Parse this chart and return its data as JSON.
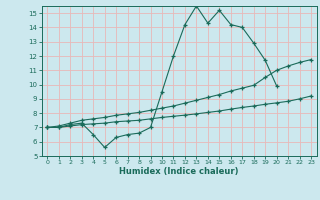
{
  "title": "",
  "xlabel": "Humidex (Indice chaleur)",
  "bg_color": "#cce8ee",
  "line_color": "#1a6b5a",
  "grid_color": "#e8b8b8",
  "ylim": [
    5,
    15.5
  ],
  "xlim": [
    -0.5,
    23.5
  ],
  "yticks": [
    5,
    6,
    7,
    8,
    9,
    10,
    11,
    12,
    13,
    14,
    15
  ],
  "xticks": [
    0,
    1,
    2,
    3,
    4,
    5,
    6,
    7,
    8,
    9,
    10,
    11,
    12,
    13,
    14,
    15,
    16,
    17,
    18,
    19,
    20,
    21,
    22,
    23
  ],
  "series1_x": [
    0,
    1,
    2,
    3,
    4,
    5,
    6,
    7,
    8,
    9,
    10,
    11,
    12,
    13,
    14,
    15,
    16,
    17,
    18,
    19,
    20
  ],
  "series1_y": [
    7.0,
    7.0,
    7.2,
    7.3,
    6.5,
    5.6,
    6.3,
    6.5,
    6.6,
    7.0,
    9.5,
    12.0,
    14.2,
    15.5,
    14.3,
    15.2,
    14.2,
    14.0,
    12.9,
    11.7,
    9.9
  ],
  "series2_x": [
    0,
    1,
    2,
    3,
    4,
    5,
    6,
    7,
    8,
    9,
    10,
    11,
    12,
    13,
    14,
    15,
    16,
    17,
    18,
    19,
    20,
    21,
    22,
    23
  ],
  "series2_y": [
    7.0,
    7.1,
    7.3,
    7.5,
    7.6,
    7.7,
    7.85,
    7.95,
    8.05,
    8.2,
    8.35,
    8.5,
    8.7,
    8.9,
    9.1,
    9.3,
    9.55,
    9.75,
    9.95,
    10.5,
    11.0,
    11.3,
    11.55,
    11.75
  ],
  "series3_x": [
    0,
    1,
    2,
    3,
    4,
    5,
    6,
    7,
    8,
    9,
    10,
    11,
    12,
    13,
    14,
    15,
    16,
    17,
    18,
    19,
    20,
    21,
    22,
    23
  ],
  "series3_y": [
    7.0,
    7.0,
    7.1,
    7.2,
    7.25,
    7.3,
    7.4,
    7.45,
    7.5,
    7.6,
    7.7,
    7.78,
    7.86,
    7.95,
    8.05,
    8.15,
    8.28,
    8.4,
    8.5,
    8.62,
    8.72,
    8.83,
    9.0,
    9.2
  ]
}
